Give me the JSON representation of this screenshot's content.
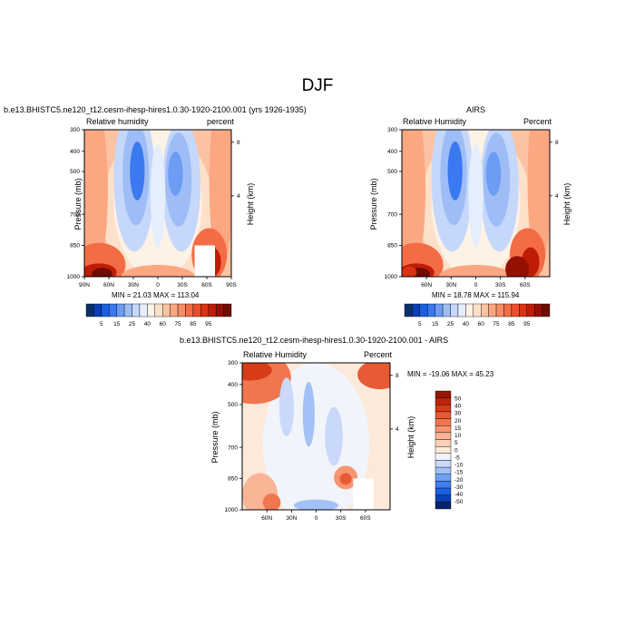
{
  "title": "DJF",
  "palette": {
    "seq": [
      "#08306b",
      "#0a3fb5",
      "#1a5fe0",
      "#3a79f0",
      "#6c9cf3",
      "#9ebdf6",
      "#c5d7fa",
      "#e5eefc",
      "#fdf2e6",
      "#fde0c9",
      "#fcc3a2",
      "#fba781",
      "#f88c64",
      "#f36c45",
      "#ec4e2a",
      "#da3212",
      "#bf1c07",
      "#961002",
      "#700b01"
    ],
    "diff": [
      "#08216b",
      "#0a3fb5",
      "#1a5fe0",
      "#3f7ef0",
      "#6f9ff3",
      "#a2c1f6",
      "#cad9fa",
      "#f2f4fb",
      "#fde9da",
      "#fcd0b6",
      "#fab596",
      "#f79573",
      "#f07650",
      "#e85a34",
      "#d63c18",
      "#bb240a",
      "#981604"
    ]
  },
  "chart_data": [
    {
      "type": "heatmap",
      "name": "model",
      "title": "b.e13.BHISTC5.ne120_t12.cesm-ihesp-hires1.0.30-1920-2100.001 (yrs 1926-1935)",
      "left_label": "Relative humidity",
      "right_label": "percent",
      "ylabel": "Pressure (mb)",
      "ylabel_right": "Height (km)",
      "y_ticks": [
        "300",
        "400",
        "500",
        "700",
        "850",
        "1000"
      ],
      "height_ticks": [
        "8",
        "4"
      ],
      "x_ticks": [
        "90N",
        "60N",
        "30N",
        "0",
        "30S",
        "60S",
        "90S"
      ],
      "x_range": [
        90,
        -90
      ],
      "min_max": "MIN =  21.03   MAX = 113.04",
      "masked_region": {
        "lat": [
          -45,
          -70
        ],
        "p": [
          850,
          1000
        ]
      }
    },
    {
      "type": "heatmap",
      "name": "airs",
      "title": "AIRS",
      "left_label": "Relative Humidity",
      "right_label": "Percent",
      "ylabel": "Pressure (mb)",
      "ylabel_right": "Height (km)",
      "y_ticks": [
        "300",
        "400",
        "500",
        "700",
        "850",
        "1000"
      ],
      "height_ticks": [
        "8",
        "4"
      ],
      "x_ticks": [
        "60N",
        "30N",
        "0",
        "30S",
        "60S"
      ],
      "x_range": [
        90,
        -90
      ],
      "min_max": "MIN =  18.78   MAX = 115.94"
    },
    {
      "type": "heatmap",
      "name": "difference",
      "title": "b.e13.BHISTC5.ne120_t12.cesm-ihesp-hires1.0.30-1920-2100.001 - AIRS",
      "left_label": "Relative Humidity",
      "right_label": "Percent",
      "ylabel": "Pressure (mb)",
      "ylabel_right": "Height (km)",
      "y_ticks": [
        "300",
        "400",
        "500",
        "700",
        "850",
        "1000"
      ],
      "height_ticks": [
        "8",
        "4"
      ],
      "x_ticks": [
        "60N",
        "30N",
        "0",
        "30S",
        "60S"
      ],
      "x_range": [
        90,
        -90
      ],
      "min_max": "MIN = -19.06   MAX =  45.23",
      "masked_region": {
        "lat": [
          -45,
          -70
        ],
        "p": [
          850,
          1000
        ]
      }
    }
  ],
  "legend_seq": {
    "labels": [
      "5",
      "15",
      "25",
      "40",
      "60",
      "75",
      "85",
      "95"
    ]
  },
  "legend_diff": {
    "labels": [
      "50",
      "40",
      "30",
      "20",
      "15",
      "10",
      "5",
      "0",
      "-5",
      "-10",
      "-15",
      "-20",
      "-30",
      "-40",
      "-50"
    ]
  }
}
